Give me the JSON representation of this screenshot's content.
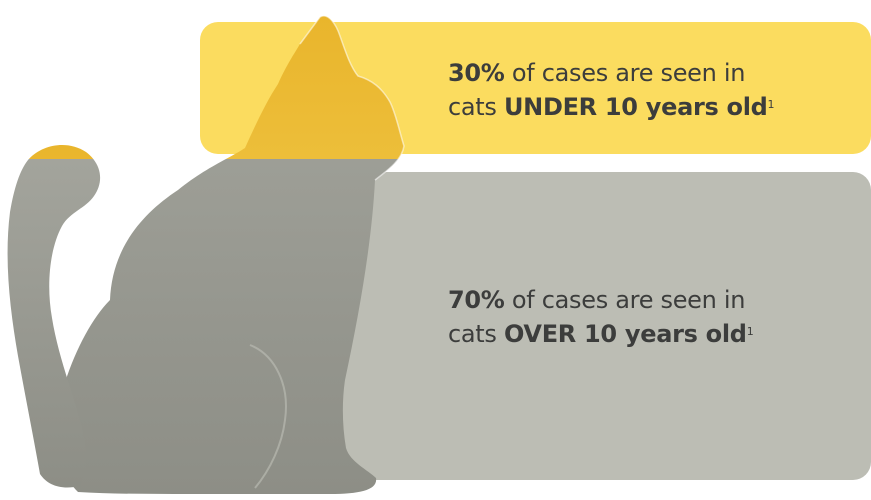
{
  "under_10": {
    "percent": "30%",
    "text_before": "of cases are seen in",
    "text_middle": "cats",
    "age_label": "UNDER 10 years old",
    "footnote": "1",
    "share": 0.3
  },
  "over_10": {
    "percent": "70%",
    "text_before": "of cases are seen in",
    "text_middle": "cats",
    "age_label": "OVER 10 years old",
    "footnote": "1",
    "share": 0.7
  },
  "colors": {
    "under_panel": "#fbdc5f",
    "over_panel": "#bcbdb4",
    "cat_yellow_top": "#e9b52c",
    "cat_yellow_bottom": "#f6d45a",
    "cat_grey_top": "#a4a59d",
    "cat_grey_bottom": "#8d8e86",
    "text": "#3c3d3c"
  }
}
